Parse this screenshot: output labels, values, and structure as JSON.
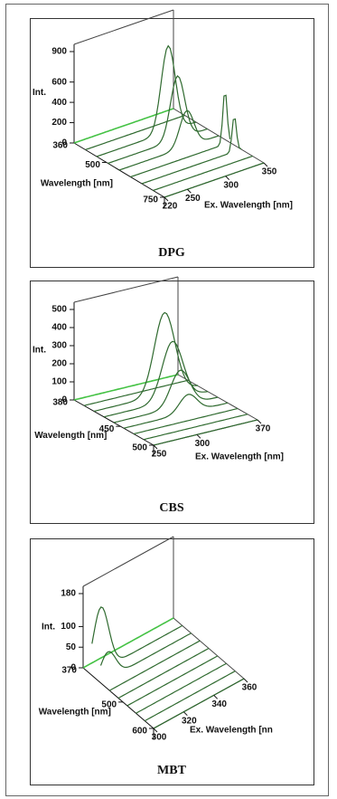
{
  "chart_data": [
    {
      "type": "waterfall3d",
      "title": "DPG",
      "zlabel": "Int.",
      "zticks": [
        900,
        600,
        400,
        200,
        0
      ],
      "ylabel": "Wavelength [nm]",
      "yticks": [
        360,
        500,
        750
      ],
      "xlabel": "Ex. Wavelength [nm]",
      "xticks": [
        220,
        250,
        300,
        350
      ]
    },
    {
      "type": "waterfall3d",
      "title": "CBS",
      "zlabel": "Int.",
      "zticks": [
        500,
        400,
        300,
        200,
        100,
        0
      ],
      "ylabel": "Wavelength [nm]",
      "yticks": [
        380,
        450,
        500
      ],
      "xlabel": "Ex. Wavelength [nm]",
      "xticks": [
        250,
        300,
        370
      ]
    },
    {
      "type": "waterfall3d",
      "title": "MBT",
      "zlabel": "Int.",
      "zticks": [
        180,
        100,
        50,
        0
      ],
      "ylabel": "Wavelength [nm]",
      "yticks": [
        370,
        500,
        600
      ],
      "xlabel": "Ex. Wavelength [nn",
      "xticks": [
        300,
        320,
        340,
        360
      ]
    }
  ]
}
